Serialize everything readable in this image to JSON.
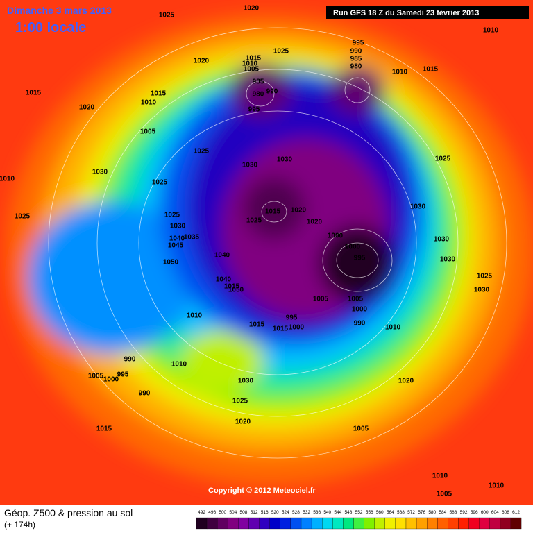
{
  "title": "Dimanche 3 mars 2013",
  "subtitle": "1:00 locale",
  "run": "Run GFS 18 Z du Samedi 23 février 2013",
  "copyright": "Copyright © 2012 Meteociel.fr",
  "legend_title": "Géop. Z500 & pression au sol",
  "legend_subtitle": "(+ 174h)",
  "isobars": [
    1025,
    1020,
    1020,
    1025,
    1015,
    1010,
    1005,
    985,
    980,
    990,
    995,
    995,
    990,
    985,
    980,
    1010,
    1015,
    1010,
    1015,
    1015,
    1010,
    1020,
    1005,
    1025,
    1030,
    1030,
    1030,
    1010,
    1025,
    1025,
    1025,
    1015,
    1020,
    1025,
    1020,
    1030,
    1040,
    1045,
    1035,
    1050,
    1040,
    1000,
    1000,
    995,
    1030,
    1025,
    1030,
    1030,
    1025,
    1030,
    1040,
    1015,
    1050,
    1010,
    1005,
    1005,
    1000,
    990,
    1010,
    995,
    1000,
    1015,
    1015,
    990,
    1010,
    1005,
    1000,
    995,
    990,
    1030,
    1025,
    1020,
    1020,
    1005,
    1015,
    1010,
    1010,
    1005
  ],
  "scale": {
    "values": [
      492,
      496,
      500,
      504,
      508,
      512,
      516,
      520,
      524,
      528,
      532,
      536,
      540,
      544,
      548,
      552,
      556,
      560,
      564,
      568,
      572,
      576,
      580,
      584,
      588,
      592,
      596,
      600,
      604,
      608,
      612
    ],
    "colors": [
      "#200020",
      "#400040",
      "#600060",
      "#800080",
      "#8000a0",
      "#6000b0",
      "#3000c0",
      "#0000c8",
      "#0020e0",
      "#0050f0",
      "#0080ff",
      "#00b0ff",
      "#00d8f0",
      "#00e8c0",
      "#00e880",
      "#40f040",
      "#80f000",
      "#c0f000",
      "#f0f000",
      "#ffe000",
      "#ffc000",
      "#ffa000",
      "#ff8000",
      "#ff6000",
      "#ff4000",
      "#ff2000",
      "#f00020",
      "#e00040",
      "#c00040",
      "#900020",
      "#600000"
    ]
  }
}
